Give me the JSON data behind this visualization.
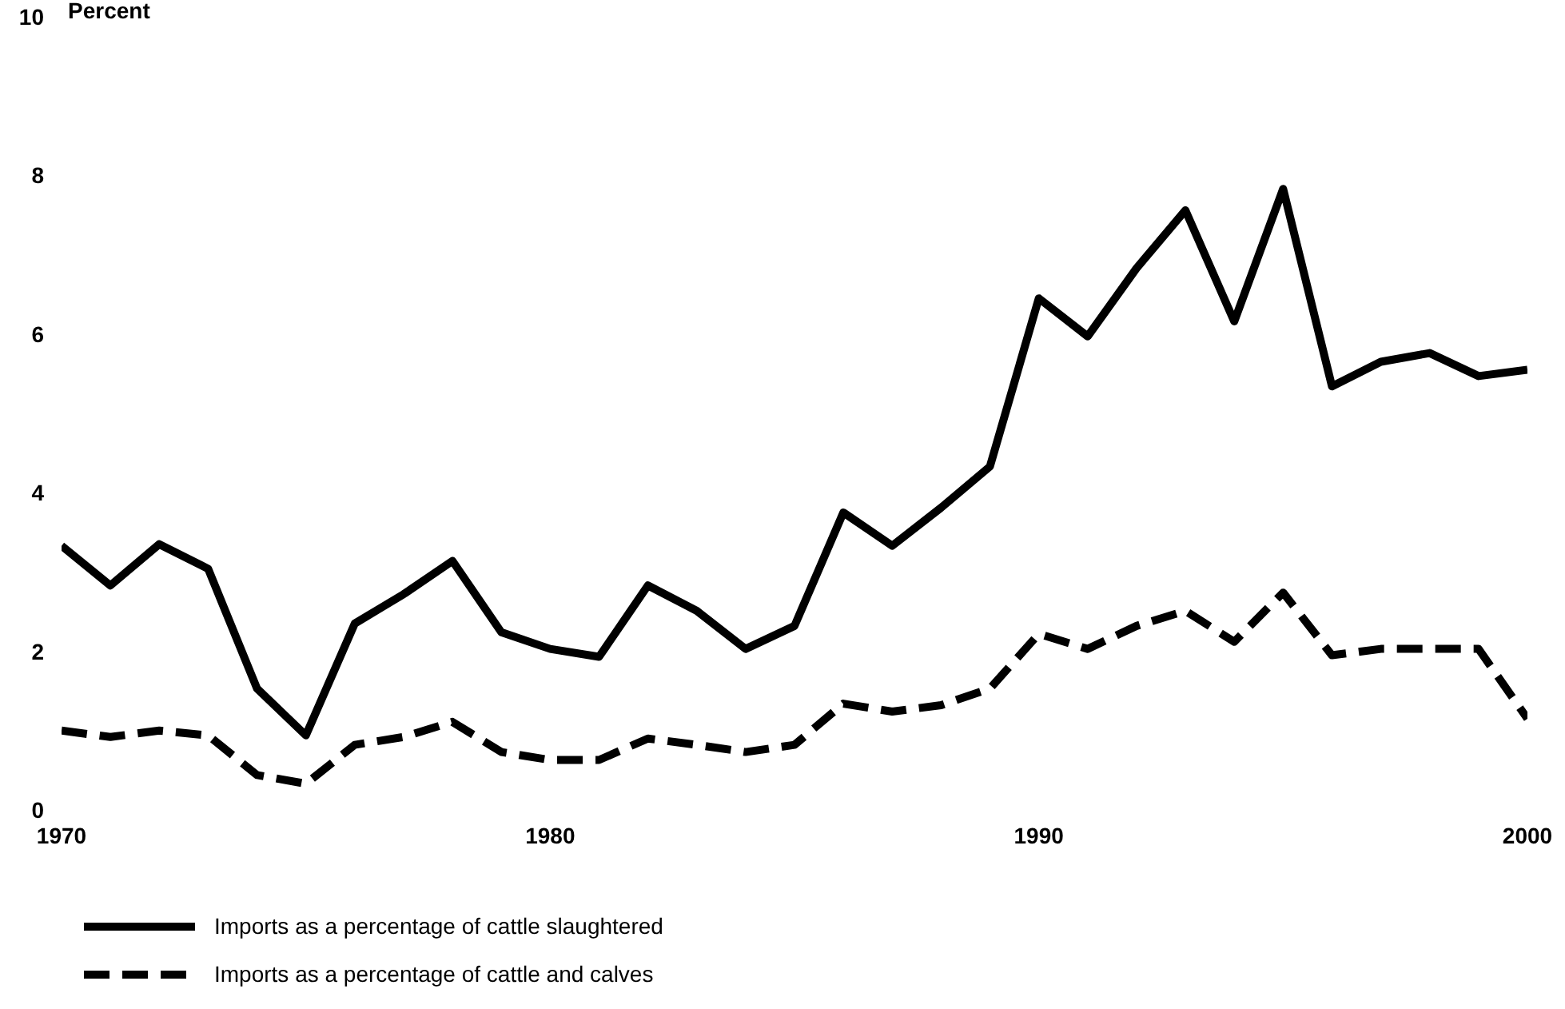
{
  "chart_data": {
    "type": "line",
    "ylabel": "Percent",
    "x": [
      1970,
      1971,
      1972,
      1973,
      1974,
      1975,
      1976,
      1977,
      1978,
      1979,
      1980,
      1981,
      1982,
      1983,
      1984,
      1985,
      1986,
      1987,
      1988,
      1989,
      1990,
      1991,
      1992,
      1993,
      1994,
      1995,
      1996,
      1997,
      1998,
      1999,
      2000
    ],
    "series": [
      {
        "name": "Imports as a percentage of cattle slaughtered",
        "color": "#000000",
        "line_style": "solid",
        "values": [
          3.33,
          2.83,
          3.35,
          3.04,
          1.53,
          0.94,
          2.35,
          2.72,
          3.14,
          2.24,
          2.03,
          1.93,
          2.83,
          2.51,
          2.03,
          2.32,
          3.75,
          3.33,
          3.81,
          4.33,
          6.45,
          5.97,
          6.83,
          7.56,
          6.16,
          7.83,
          5.34,
          5.65,
          5.76,
          5.47,
          5.55
        ]
      },
      {
        "name": "Imports as a percentage of cattle and calves",
        "color": "#000000",
        "line_style": "dashed",
        "values": [
          1.0,
          0.92,
          1.0,
          0.94,
          0.44,
          0.33,
          0.82,
          0.92,
          1.11,
          0.73,
          0.63,
          0.63,
          0.9,
          0.82,
          0.73,
          0.82,
          1.34,
          1.24,
          1.32,
          1.53,
          2.22,
          2.03,
          2.32,
          2.51,
          2.12,
          2.74,
          1.95,
          2.03,
          2.03,
          2.03,
          1.15
        ]
      }
    ],
    "xlim": [
      1970,
      2000
    ],
    "xticks": [
      1970,
      1980,
      1990,
      2000
    ],
    "ylim": [
      0,
      10
    ],
    "yticks": [
      0,
      2,
      4,
      6,
      8,
      10
    ],
    "grid": false,
    "legend": "bottom",
    "marker": "none"
  }
}
